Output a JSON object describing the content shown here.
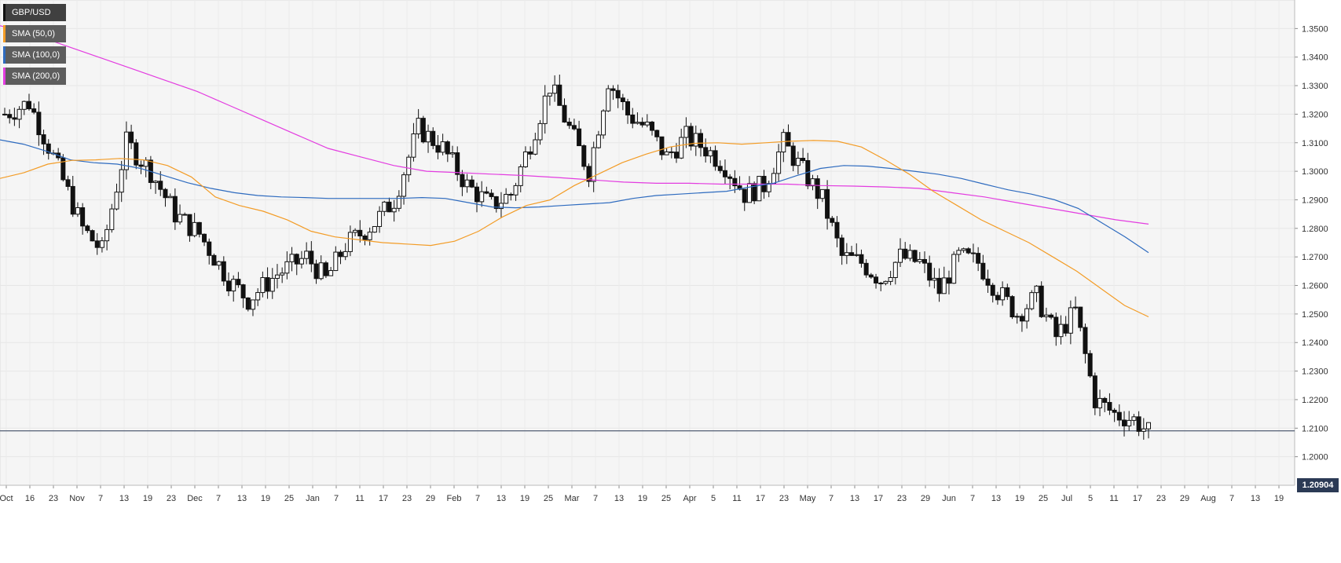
{
  "chart_data": {
    "type": "candlestick",
    "symbol": "GBP/USD",
    "timeframe": "daily",
    "ylim": [
      1.19,
      1.36
    ],
    "y_ticks": [
      "1.2000",
      "1.2100",
      "1.2200",
      "1.2300",
      "1.2400",
      "1.2500",
      "1.2600",
      "1.2700",
      "1.2800",
      "1.2900",
      "1.3000",
      "1.3100",
      "1.3200",
      "1.3300",
      "1.3400",
      "1.3500"
    ],
    "x_labels": [
      "Oct",
      "16",
      "23",
      "Nov",
      "7",
      "13",
      "19",
      "23",
      "Dec",
      "7",
      "13",
      "19",
      "25",
      "Jan",
      "7",
      "11",
      "17",
      "23",
      "29",
      "Feb",
      "7",
      "13",
      "19",
      "25",
      "Mar",
      "7",
      "13",
      "19",
      "25",
      "Apr",
      "5",
      "11",
      "17",
      "23",
      "May",
      "7",
      "13",
      "17",
      "23",
      "29",
      "Jun",
      "7",
      "13",
      "19",
      "25",
      "Jul",
      "5",
      "11",
      "17",
      "23",
      "29",
      "Aug",
      "7",
      "13",
      "19"
    ],
    "legend": [
      {
        "label": "GBP/USD",
        "color": "#111111"
      },
      {
        "label": "SMA (50,0)",
        "color": "#f39c26"
      },
      {
        "label": "SMA (100,0)",
        "color": "#2e6bbf"
      },
      {
        "label": "SMA (200,0)",
        "color": "#e33ce0"
      }
    ],
    "current_price": "1.20904",
    "sma50": [
      1.2975,
      1.2995,
      1.3025,
      1.3038,
      1.304,
      1.3045,
      1.304,
      1.302,
      1.298,
      1.291,
      1.288,
      1.286,
      1.283,
      1.279,
      1.277,
      1.276,
      1.275,
      1.2745,
      1.274,
      1.2755,
      1.279,
      1.284,
      1.288,
      1.29,
      1.295,
      1.299,
      1.303,
      1.306,
      1.3085,
      1.3098,
      1.31,
      1.3095,
      1.31,
      1.3105,
      1.3108,
      1.3105,
      1.3085,
      1.304,
      1.299,
      1.293,
      1.288,
      1.283,
      1.279,
      1.275,
      1.27,
      1.265,
      1.259,
      1.253,
      1.249
    ],
    "sma100": [
      1.311,
      1.3095,
      1.307,
      1.304,
      1.303,
      1.3025,
      1.301,
      1.2985,
      1.296,
      1.294,
      1.2925,
      1.2915,
      1.291,
      1.2908,
      1.2905,
      1.2905,
      1.2905,
      1.2905,
      1.2908,
      1.2905,
      1.289,
      1.2875,
      1.2872,
      1.2875,
      1.288,
      1.2885,
      1.289,
      1.2905,
      1.2915,
      1.292,
      1.2925,
      1.293,
      1.2945,
      1.2958,
      1.2985,
      1.301,
      1.302,
      1.3018,
      1.301,
      1.3,
      1.299,
      1.2975,
      1.2955,
      1.2935,
      1.292,
      1.29,
      1.287,
      1.282,
      1.277,
      1.2715
    ],
    "sma200": [
      1.351,
      1.348,
      1.344,
      1.34,
      1.336,
      1.332,
      1.328,
      1.323,
      1.318,
      1.313,
      1.308,
      1.305,
      1.302,
      1.3,
      1.2995,
      1.299,
      1.2985,
      1.2978,
      1.297,
      1.2962,
      1.2958,
      1.2958,
      1.2955,
      1.2955,
      1.2955,
      1.295,
      1.2948,
      1.2945,
      1.294,
      1.2925,
      1.291,
      1.289,
      1.287,
      1.285,
      1.283,
      1.2815
    ]
  }
}
